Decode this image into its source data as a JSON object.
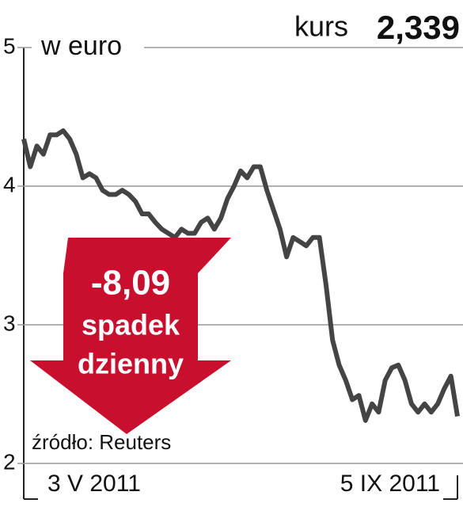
{
  "chart_data": {
    "type": "line",
    "title": "kurs",
    "subtitle": "2,339",
    "y_label": "w euro",
    "annotations": [
      "-8,09",
      "spadek",
      "dzienny"
    ],
    "source": "źródło: Reuters",
    "categories": [
      "3 V 2011",
      null,
      null,
      null,
      null,
      null,
      null,
      null,
      null,
      null,
      null,
      null,
      null,
      null,
      null,
      null,
      null,
      null,
      null,
      null,
      null,
      null,
      null,
      null,
      null,
      null,
      null,
      null,
      null,
      null,
      null,
      null,
      null,
      null,
      null,
      null,
      null,
      null,
      null,
      null,
      null,
      null,
      null,
      null,
      null,
      null,
      null,
      null,
      null,
      null,
      null,
      null,
      null,
      null,
      null,
      null,
      null,
      null,
      null,
      null,
      null,
      null,
      null,
      null,
      null,
      null,
      "5 IX 2011"
    ],
    "values": [
      4.34,
      4.14,
      4.29,
      4.23,
      4.37,
      4.37,
      4.4,
      4.34,
      4.23,
      4.06,
      4.09,
      4.06,
      3.97,
      3.94,
      3.94,
      3.97,
      3.94,
      3.89,
      3.8,
      3.8,
      3.74,
      3.69,
      3.66,
      3.63,
      3.69,
      3.66,
      3.66,
      3.74,
      3.77,
      3.69,
      3.77,
      3.91,
      4.0,
      4.11,
      4.06,
      4.14,
      4.14,
      3.97,
      3.83,
      3.69,
      3.49,
      3.63,
      3.6,
      3.57,
      3.63,
      3.63,
      3.29,
      2.89,
      2.71,
      2.6,
      2.46,
      2.49,
      2.31,
      2.43,
      2.37,
      2.6,
      2.69,
      2.71,
      2.6,
      2.43,
      2.37,
      2.43,
      2.37,
      2.43,
      2.54,
      2.63,
      2.34
    ],
    "color": "#444444",
    "ylim": [
      2,
      5
    ],
    "yticks": [
      2,
      3,
      4,
      5
    ],
    "grid": true
  }
}
